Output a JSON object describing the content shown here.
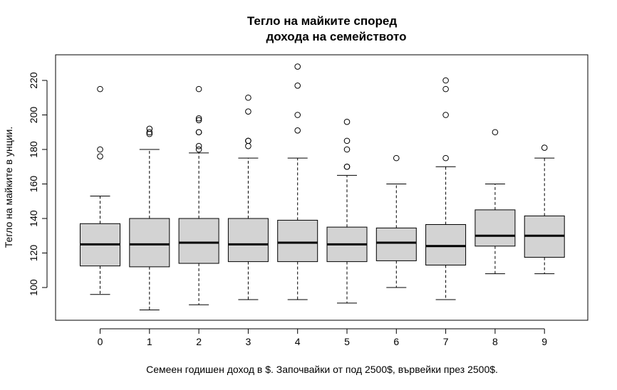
{
  "chart_data": {
    "type": "boxplot",
    "title_line1": "Тегло на майките според",
    "title_line2": "дохода на семейството",
    "xlabel": "Семеен годишен доход в $. Започвайки от под 2500$, вървейки през 2500$.",
    "ylabel": "Тегло на майките в унции.",
    "ylim": [
      80,
      230
    ],
    "yticks": [
      100,
      120,
      140,
      160,
      180,
      200,
      220
    ],
    "grid": false,
    "box_color": "#d3d3d3",
    "categories": [
      "0",
      "1",
      "2",
      "3",
      "4",
      "5",
      "6",
      "7",
      "8",
      "9"
    ],
    "boxes": [
      {
        "whisker_low": 96,
        "q1": 112.5,
        "median": 125,
        "q3": 137,
        "whisker_high": 153,
        "outliers": [
          176,
          180,
          215
        ]
      },
      {
        "whisker_low": 87,
        "q1": 112,
        "median": 125,
        "q3": 140,
        "whisker_high": 180,
        "outliers": [
          189,
          190,
          192
        ]
      },
      {
        "whisker_low": 90,
        "q1": 114,
        "median": 126,
        "q3": 140,
        "whisker_high": 178,
        "outliers": [
          180,
          182,
          190,
          190,
          197,
          198,
          215
        ]
      },
      {
        "whisker_low": 93,
        "q1": 115,
        "median": 125,
        "q3": 140,
        "whisker_high": 175,
        "outliers": [
          182,
          185,
          185,
          202,
          210
        ]
      },
      {
        "whisker_low": 93,
        "q1": 115,
        "median": 126,
        "q3": 139,
        "whisker_high": 175,
        "outliers": [
          191,
          200,
          217,
          228
        ]
      },
      {
        "whisker_low": 91,
        "q1": 115,
        "median": 125,
        "q3": 135,
        "whisker_high": 165,
        "outliers": [
          170,
          170,
          180,
          185,
          196
        ]
      },
      {
        "whisker_low": 100,
        "q1": 115.5,
        "median": 126,
        "q3": 134.5,
        "whisker_high": 160,
        "outliers": [
          175
        ]
      },
      {
        "whisker_low": 93,
        "q1": 113,
        "median": 124,
        "q3": 136.5,
        "whisker_high": 170,
        "outliers": [
          175,
          200,
          215,
          220
        ]
      },
      {
        "whisker_low": 108,
        "q1": 124,
        "median": 130,
        "q3": 145,
        "whisker_high": 160,
        "outliers": [
          190
        ]
      },
      {
        "whisker_low": 108,
        "q1": 117.5,
        "median": 130,
        "q3": 141.5,
        "whisker_high": 175,
        "outliers": [
          181
        ]
      }
    ]
  }
}
